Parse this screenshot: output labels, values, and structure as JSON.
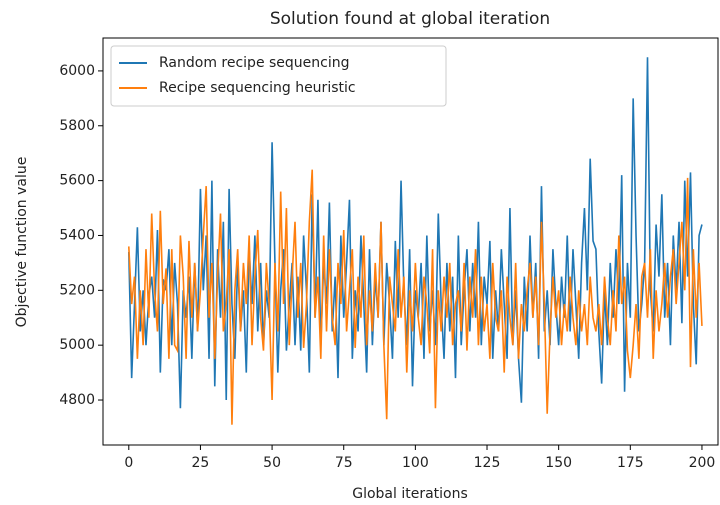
{
  "chart_data": {
    "type": "line",
    "title": "Solution found at global iteration",
    "xlabel": "Global iterations",
    "ylabel": "Objective function value",
    "x": [
      0,
      1,
      2,
      3,
      4,
      5,
      6,
      7,
      8,
      9,
      10,
      11,
      12,
      13,
      14,
      15,
      16,
      17,
      18,
      19,
      20,
      21,
      22,
      23,
      24,
      25,
      26,
      27,
      28,
      29,
      30,
      31,
      32,
      33,
      34,
      35,
      36,
      37,
      38,
      39,
      40,
      41,
      42,
      43,
      44,
      45,
      46,
      47,
      48,
      49,
      50,
      51,
      52,
      53,
      54,
      55,
      56,
      57,
      58,
      59,
      60,
      61,
      62,
      63,
      64,
      65,
      66,
      67,
      68,
      69,
      70,
      71,
      72,
      73,
      74,
      75,
      76,
      77,
      78,
      79,
      80,
      81,
      82,
      83,
      84,
      85,
      86,
      87,
      88,
      89,
      90,
      91,
      92,
      93,
      94,
      95,
      96,
      97,
      98,
      99,
      100,
      101,
      102,
      103,
      104,
      105,
      106,
      107,
      108,
      109,
      110,
      111,
      112,
      113,
      114,
      115,
      116,
      117,
      118,
      119,
      120,
      121,
      122,
      123,
      124,
      125,
      126,
      127,
      128,
      129,
      130,
      131,
      132,
      133,
      134,
      135,
      136,
      137,
      138,
      139,
      140,
      141,
      142,
      143,
      144,
      145,
      146,
      147,
      148,
      149,
      150,
      151,
      152,
      153,
      154,
      155,
      156,
      157,
      158,
      159,
      160,
      161,
      162,
      163,
      164,
      165,
      166,
      167,
      168,
      169,
      170,
      171,
      172,
      173,
      174,
      175,
      176,
      177,
      178,
      179,
      180,
      181,
      182,
      183,
      184,
      185,
      186,
      187,
      188,
      189,
      190,
      191,
      192,
      193,
      194,
      195,
      196,
      197,
      198,
      199,
      200
    ],
    "series": [
      {
        "name": "Random recipe sequencing",
        "color": "#1f77b4",
        "values": [
          5340,
          4880,
          5150,
          5430,
          5050,
          5200,
          5000,
          5180,
          5250,
          5100,
          5420,
          4900,
          5240,
          5200,
          5350,
          5000,
          5300,
          5150,
          4770,
          5200,
          5100,
          5250,
          4950,
          5300,
          5050,
          5570,
          5200,
          5400,
          4950,
          5600,
          4850,
          5350,
          5100,
          5450,
          4800,
          5570,
          5150,
          4950,
          5300,
          5050,
          5200,
          4900,
          5350,
          5150,
          5400,
          5050,
          5300,
          5000,
          5200,
          5100,
          5740,
          5300,
          4900,
          5200,
          5350,
          4980,
          5150,
          5300,
          5000,
          5250,
          4980,
          5400,
          5200,
          4900,
          5550,
          5100,
          5530,
          5000,
          5300,
          5150,
          5520,
          5050,
          5250,
          4880,
          5400,
          5100,
          5300,
          5530,
          4950,
          5200,
          5050,
          5400,
          5150,
          4900,
          5350,
          5000,
          5250,
          5100,
          5450,
          5000,
          5300,
          5150,
          4950,
          5380,
          5100,
          5600,
          5200,
          5000,
          5350,
          4850,
          5200,
          5100,
          5300,
          4950,
          5400,
          5050,
          5200,
          5000,
          5480,
          5150,
          4950,
          5300,
          5050,
          5250,
          4880,
          5400,
          5000,
          5200,
          5350,
          5050,
          5300,
          5100,
          5450,
          5000,
          5250,
          5150,
          5380,
          4950,
          5200,
          5050,
          5350,
          5150,
          4950,
          5500,
          5000,
          5200,
          4950,
          4790,
          5250,
          5050,
          5400,
          5100,
          5300,
          4950,
          5580,
          5050,
          5200,
          5000,
          5350,
          5150,
          5000,
          5250,
          5100,
          5400,
          5050,
          5350,
          5150,
          4950,
          5300,
          5500,
          5200,
          5680,
          5380,
          5350,
          5050,
          4860,
          5200,
          5000,
          5300,
          5100,
          5350,
          5150,
          5620,
          4830,
          5300,
          5100,
          5900,
          5400,
          5050,
          5150,
          5300,
          6050,
          5200,
          5050,
          5440,
          5250,
          5550,
          5100,
          5300,
          5000,
          5400,
          5200,
          5450,
          5080,
          5600,
          5250,
          5630,
          5150,
          4930,
          5400,
          5440
        ]
      },
      {
        "name": "Recipe sequencing heuristic",
        "color": "#ff7f0e",
        "values": [
          5360,
          5150,
          5250,
          4950,
          5200,
          5000,
          5350,
          5100,
          5480,
          5200,
          5050,
          5490,
          5150,
          5280,
          4950,
          5350,
          5000,
          4980,
          5400,
          5250,
          4950,
          5380,
          5100,
          5300,
          5050,
          5200,
          5400,
          5580,
          5100,
          5300,
          4950,
          5250,
          5480,
          5050,
          5150,
          5350,
          4710,
          5200,
          5350,
          5050,
          5300,
          5150,
          5400,
          5000,
          5250,
          5420,
          5100,
          4980,
          5300,
          5150,
          4800,
          5300,
          5050,
          5560,
          5150,
          5500,
          5000,
          5250,
          5450,
          5100,
          5300,
          4990,
          5150,
          5450,
          5640,
          5100,
          5250,
          4950,
          5400,
          5050,
          5350,
          5100,
          5000,
          5300,
          5150,
          5420,
          5050,
          5200,
          5350,
          4990,
          5250,
          5100,
          5400,
          5000,
          5200,
          5050,
          5300,
          5100,
          5450,
          5000,
          4730,
          5250,
          5150,
          5050,
          5350,
          5100,
          5250,
          4900,
          5200,
          5050,
          5300,
          5100,
          5000,
          5250,
          5150,
          4970,
          5350,
          4770,
          5200,
          5050,
          5250,
          5100,
          5300,
          5000,
          5150,
          5200,
          5050,
          5300,
          4980,
          5250,
          5100,
          5350,
          5000,
          5250,
          5050,
          5150,
          4950,
          5300,
          5100,
          5050,
          5200,
          4900,
          5250,
          5100,
          5000,
          5300,
          4950,
          5150,
          5050,
          5200,
          5300,
          5100,
          5250,
          5000,
          5450,
          5150,
          4750,
          5050,
          5250,
          5100,
          5200,
          5000,
          5150,
          5050,
          5250,
          5100,
          5000,
          5200,
          5050,
          5150,
          5000,
          5250,
          5100,
          5050,
          5150,
          5000,
          5250,
          5100,
          5000,
          5200,
          5050,
          5400,
          5150,
          5250,
          4980,
          4880,
          5000,
          5150,
          4950,
          5250,
          5300,
          5100,
          5350,
          4950,
          5200,
          5050,
          5150,
          5300,
          5100,
          5250,
          5350,
          5150,
          5300,
          5450,
          5200,
          5610,
          4920,
          5350,
          5100,
          5300,
          5070
        ]
      }
    ],
    "xlim": [
      -9,
      205.6
    ],
    "ylim": [
      4636,
      6120
    ],
    "xticks": [
      0,
      25,
      50,
      75,
      100,
      125,
      150,
      175,
      200
    ],
    "yticks": [
      4800,
      5000,
      5200,
      5400,
      5600,
      5800,
      6000
    ],
    "legend": "upper left"
  }
}
